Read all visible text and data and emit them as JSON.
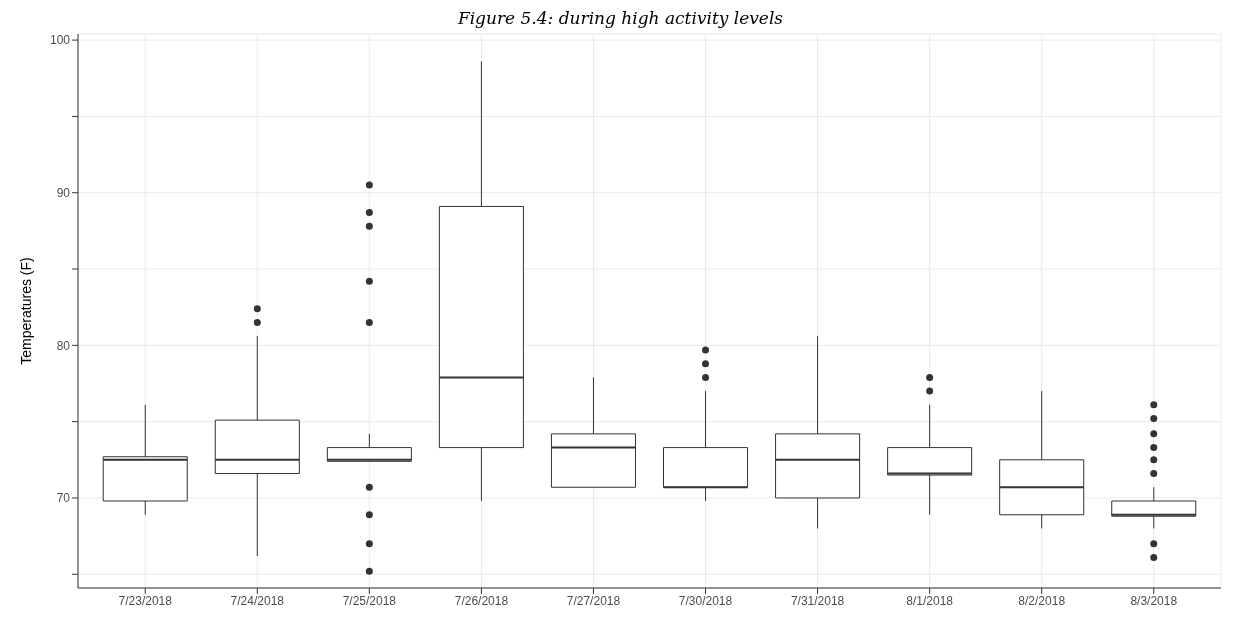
{
  "chart_data": {
    "type": "box",
    "title": "Figure 5.4: during high activity levels",
    "ylabel": "Temperatures (F)",
    "categories": [
      "7/23/2018",
      "7/24/2018",
      "7/25/2018",
      "7/26/2018",
      "7/27/2018",
      "7/30/2018",
      "7/31/2018",
      "8/1/2018",
      "8/2/2018",
      "8/3/2018"
    ],
    "boxes": [
      {
        "low": 68.9,
        "q1": 69.8,
        "median": 72.5,
        "q3": 72.7,
        "high": 76.1
      },
      {
        "low": 66.2,
        "q1": 71.6,
        "median": 72.5,
        "q3": 75.1,
        "high": 80.6,
        "outliers": [
          82.4,
          81.5
        ]
      },
      {
        "low": 72.4,
        "q1": 72.4,
        "median": 72.5,
        "q3": 73.3,
        "high": 74.2,
        "outliers": [
          90.5,
          88.7,
          87.8,
          84.2,
          81.5,
          70.7,
          68.9,
          67.0,
          65.2
        ]
      },
      {
        "low": 69.8,
        "q1": 73.3,
        "median": 77.9,
        "q3": 89.1,
        "high": 98.6
      },
      {
        "low": 70.7,
        "q1": 70.7,
        "median": 73.3,
        "q3": 74.2,
        "high": 77.9
      },
      {
        "low": 69.8,
        "q1": 70.7,
        "median": 70.7,
        "q3": 73.3,
        "high": 77.0,
        "outliers": [
          79.7,
          78.8,
          77.9
        ]
      },
      {
        "low": 68.0,
        "q1": 70.0,
        "median": 72.5,
        "q3": 74.2,
        "high": 80.6
      },
      {
        "low": 68.9,
        "q1": 71.5,
        "median": 71.6,
        "q3": 73.3,
        "high": 76.1,
        "outliers": [
          77.9,
          77.0
        ]
      },
      {
        "low": 68.0,
        "q1": 68.9,
        "median": 70.7,
        "q3": 72.5,
        "high": 77.0
      },
      {
        "low": 68.0,
        "q1": 68.8,
        "median": 68.9,
        "q3": 69.8,
        "high": 70.7,
        "outliers": [
          76.1,
          75.2,
          74.2,
          73.3,
          72.5,
          71.6,
          67.0,
          66.1
        ]
      }
    ],
    "ylim": [
      64.1,
      100.4
    ],
    "yticks": [
      {
        "value": 65,
        "label": null
      },
      70,
      {
        "value": 75,
        "label": null
      },
      80,
      {
        "value": 85,
        "label": null
      },
      90,
      {
        "value": 95,
        "label": null
      },
      100
    ],
    "grid": true
  }
}
